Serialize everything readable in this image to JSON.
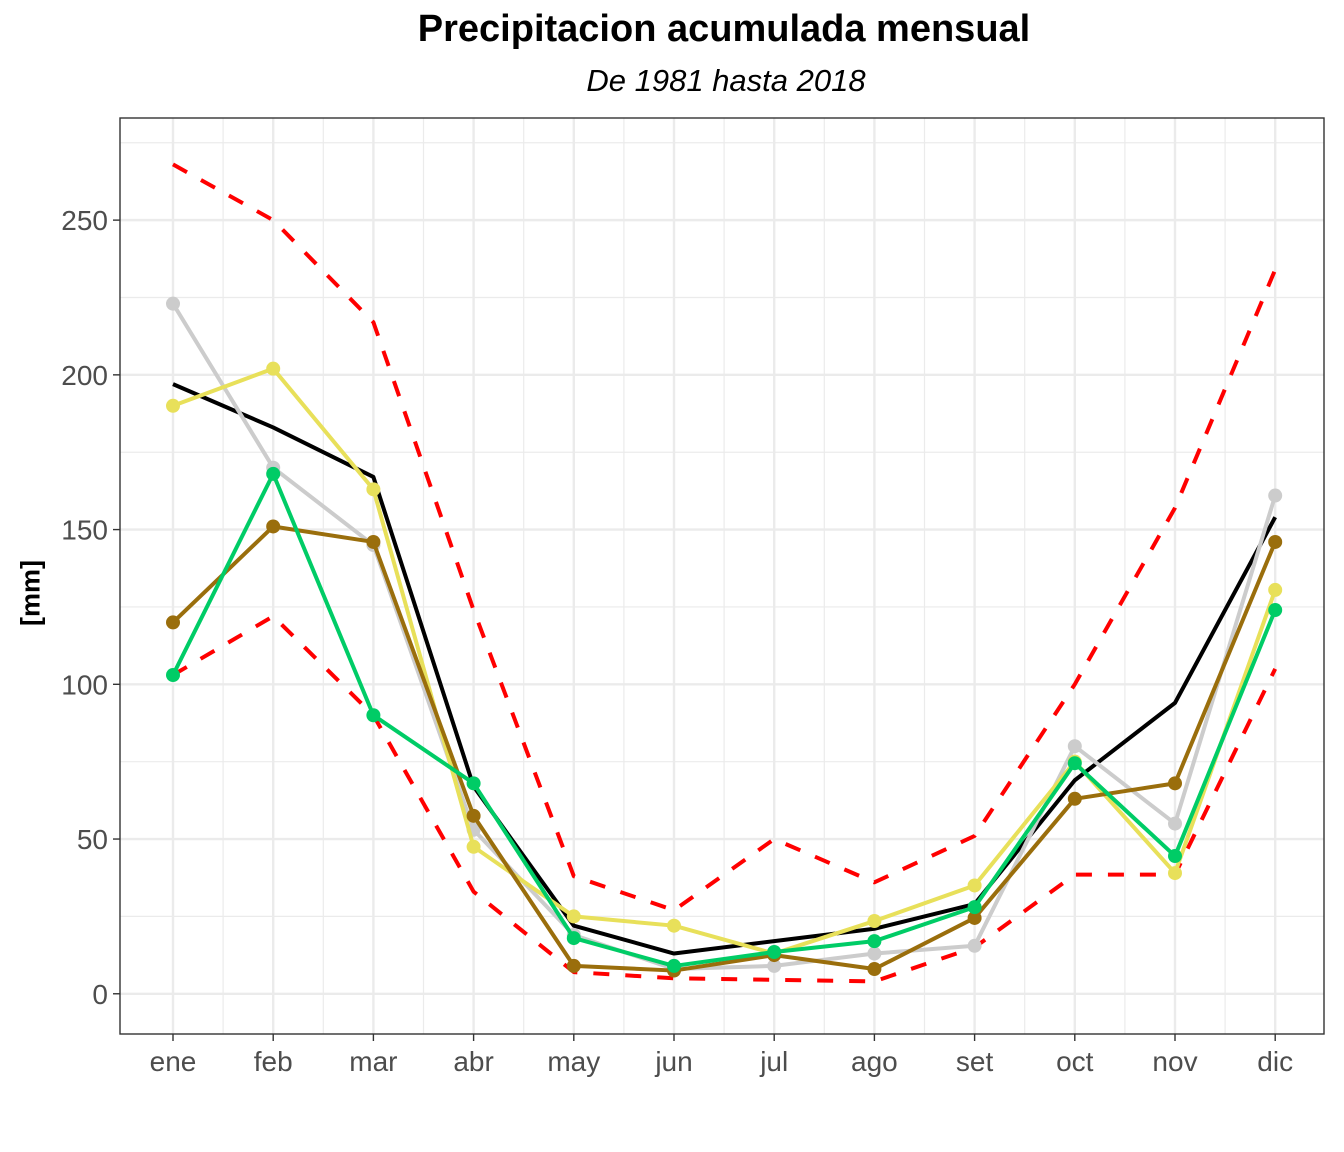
{
  "chart_data": {
    "type": "line",
    "title": "Precipitacion acumulada mensual",
    "subtitle": "De 1981 hasta 2018",
    "ylabel": "[mm]",
    "xlabel": "",
    "categories": [
      "ene",
      "feb",
      "mar",
      "abr",
      "may",
      "jun",
      "jul",
      "ago",
      "set",
      "oct",
      "nov",
      "dic"
    ],
    "ylim": [
      -13,
      283
    ],
    "yticks": [
      0,
      50,
      100,
      150,
      200,
      250
    ],
    "grid": true,
    "legend": "none",
    "series": [
      {
        "color": "#ff0000",
        "style": "dashed",
        "markers": false,
        "values": [
          268,
          250,
          217,
          124,
          38,
          27,
          50,
          36,
          51,
          100,
          157,
          234
        ]
      },
      {
        "color": "#ff0000",
        "style": "dashed",
        "markers": false,
        "values": [
          103,
          122,
          90,
          33,
          7,
          5,
          4.5,
          4,
          15,
          38.5,
          38.5,
          105
        ]
      },
      {
        "color": "#000000",
        "style": "solid",
        "markers": false,
        "values": [
          197,
          183,
          167,
          67,
          22,
          13,
          17,
          21,
          29,
          69,
          94,
          154
        ]
      },
      {
        "color": "#cccccc",
        "style": "solid",
        "markers": true,
        "values": [
          223,
          170,
          145,
          53,
          19,
          8,
          9,
          13,
          15.5,
          80,
          55,
          161
        ]
      },
      {
        "color": "#e8e05a",
        "style": "solid",
        "markers": true,
        "values": [
          190,
          202,
          163,
          47.5,
          25,
          22,
          13,
          23.5,
          35,
          75,
          39,
          130.5
        ]
      },
      {
        "color": "#9a6e0c",
        "style": "solid",
        "markers": true,
        "values": [
          120,
          151,
          146,
          57.5,
          9,
          7.5,
          12.5,
          8,
          24.5,
          63,
          68,
          146
        ]
      },
      {
        "color": "#00cc66",
        "style": "solid",
        "markers": true,
        "values": [
          103,
          168,
          90,
          68,
          18,
          9,
          13.5,
          17,
          28,
          74.5,
          44.5,
          124
        ]
      }
    ]
  }
}
